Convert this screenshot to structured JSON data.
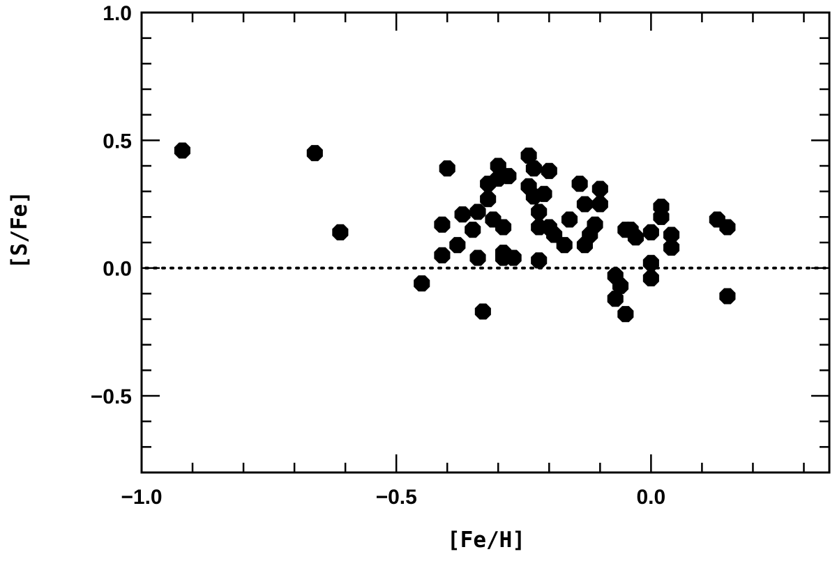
{
  "chart_data": {
    "type": "scatter",
    "xlabel": "[Fe/H]",
    "ylabel": "[S/Fe]",
    "xlim": [
      -1.0,
      0.35
    ],
    "ylim": [
      -0.8,
      1.0
    ],
    "x_ticks": [
      {
        "value": -1.0,
        "label": "−1.0"
      },
      {
        "value": -0.5,
        "label": "−0.5"
      },
      {
        "value": 0.0,
        "label": "0.0"
      }
    ],
    "y_ticks": [
      {
        "value": 1.0,
        "label": "1.0"
      },
      {
        "value": 0.5,
        "label": "0.5"
      },
      {
        "value": 0.0,
        "label": "0.0"
      },
      {
        "value": -0.5,
        "label": "−0.5"
      }
    ],
    "x_minor_step": 0.1,
    "y_minor_step": 0.1,
    "reference_line": {
      "y": 0.0,
      "style": "dotted"
    },
    "grid": false,
    "marker": {
      "shape": "octagon",
      "filled": true,
      "color": "#000000"
    },
    "points": [
      {
        "x": -0.92,
        "y": 0.46
      },
      {
        "x": -0.66,
        "y": 0.45
      },
      {
        "x": -0.61,
        "y": 0.14
      },
      {
        "x": -0.45,
        "y": -0.06
      },
      {
        "x": -0.41,
        "y": 0.17
      },
      {
        "x": -0.41,
        "y": 0.05
      },
      {
        "x": -0.4,
        "y": 0.39
      },
      {
        "x": -0.38,
        "y": 0.09
      },
      {
        "x": -0.37,
        "y": 0.21
      },
      {
        "x": -0.35,
        "y": 0.15
      },
      {
        "x": -0.34,
        "y": 0.22
      },
      {
        "x": -0.34,
        "y": 0.04
      },
      {
        "x": -0.33,
        "y": -0.17
      },
      {
        "x": -0.32,
        "y": 0.27
      },
      {
        "x": -0.32,
        "y": 0.33
      },
      {
        "x": -0.31,
        "y": 0.19
      },
      {
        "x": -0.3,
        "y": 0.4
      },
      {
        "x": -0.3,
        "y": 0.35
      },
      {
        "x": -0.29,
        "y": 0.16
      },
      {
        "x": -0.29,
        "y": 0.06
      },
      {
        "x": -0.29,
        "y": 0.04
      },
      {
        "x": -0.28,
        "y": 0.36
      },
      {
        "x": -0.27,
        "y": 0.04
      },
      {
        "x": -0.24,
        "y": 0.44
      },
      {
        "x": -0.24,
        "y": 0.32
      },
      {
        "x": -0.23,
        "y": 0.28
      },
      {
        "x": -0.23,
        "y": 0.39
      },
      {
        "x": -0.22,
        "y": 0.22
      },
      {
        "x": -0.22,
        "y": 0.16
      },
      {
        "x": -0.22,
        "y": 0.03
      },
      {
        "x": -0.21,
        "y": 0.29
      },
      {
        "x": -0.2,
        "y": 0.38
      },
      {
        "x": -0.2,
        "y": 0.16
      },
      {
        "x": -0.19,
        "y": 0.13
      },
      {
        "x": -0.17,
        "y": 0.09
      },
      {
        "x": -0.16,
        "y": 0.19
      },
      {
        "x": -0.14,
        "y": 0.33
      },
      {
        "x": -0.13,
        "y": 0.25
      },
      {
        "x": -0.13,
        "y": 0.09
      },
      {
        "x": -0.12,
        "y": 0.13
      },
      {
        "x": -0.11,
        "y": 0.17
      },
      {
        "x": -0.1,
        "y": 0.25
      },
      {
        "x": -0.1,
        "y": 0.31
      },
      {
        "x": -0.07,
        "y": -0.03
      },
      {
        "x": -0.07,
        "y": -0.12
      },
      {
        "x": -0.06,
        "y": -0.07
      },
      {
        "x": -0.05,
        "y": -0.18
      },
      {
        "x": -0.05,
        "y": 0.15
      },
      {
        "x": -0.04,
        "y": 0.15
      },
      {
        "x": -0.03,
        "y": 0.12
      },
      {
        "x": 0.0,
        "y": 0.14
      },
      {
        "x": 0.0,
        "y": 0.02
      },
      {
        "x": 0.0,
        "y": -0.04
      },
      {
        "x": 0.02,
        "y": 0.2
      },
      {
        "x": 0.02,
        "y": 0.24
      },
      {
        "x": 0.04,
        "y": 0.13
      },
      {
        "x": 0.04,
        "y": 0.08
      },
      {
        "x": 0.13,
        "y": 0.19
      },
      {
        "x": 0.15,
        "y": 0.16
      },
      {
        "x": 0.15,
        "y": -0.11
      }
    ]
  }
}
